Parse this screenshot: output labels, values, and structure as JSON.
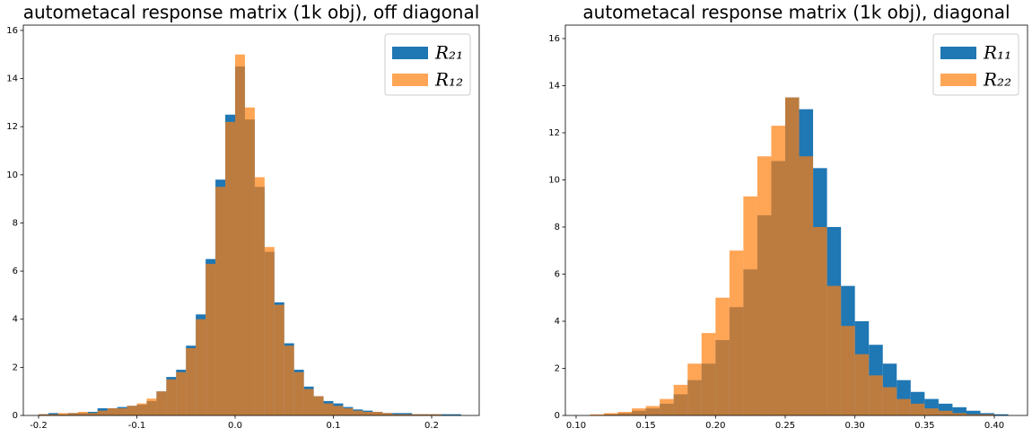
{
  "chart_data": [
    {
      "type": "histogram",
      "title": "autometacal response matrix (1k obj), off diagonal",
      "bins": [
        -0.2,
        -0.19,
        -0.18,
        -0.17,
        -0.16,
        -0.15,
        -0.14,
        -0.13,
        -0.12,
        -0.11,
        -0.1,
        -0.09,
        -0.08,
        -0.07,
        -0.06,
        -0.05,
        -0.04,
        -0.03,
        -0.02,
        -0.01,
        0,
        0.01,
        0.02,
        0.03,
        0.04,
        0.05,
        0.06,
        0.07,
        0.08,
        0.09,
        0.1,
        0.11,
        0.12,
        0.13,
        0.14,
        0.15,
        0.16,
        0.17,
        0.18,
        0.19,
        0.2,
        0.21,
        0.22,
        0.23
      ],
      "series": [
        {
          "name": "R₂₁",
          "color": "#1f77b4",
          "opacity": 1,
          "values": [
            0.05,
            0.1,
            0.05,
            0.1,
            0.1,
            0.15,
            0.3,
            0.3,
            0.35,
            0.4,
            0.45,
            0.6,
            1.0,
            1.6,
            1.9,
            2.9,
            4.2,
            6.5,
            9.8,
            12.5,
            14.5,
            12.3,
            9.5,
            6.8,
            4.7,
            3.0,
            1.9,
            1.2,
            0.8,
            0.6,
            0.5,
            0.35,
            0.25,
            0.2,
            0.15,
            0.1,
            0.1,
            0.1,
            0.05,
            0.05,
            0.05,
            0.05,
            0.05
          ]
        },
        {
          "name": "R₁₂",
          "color": "#ff7f0e",
          "opacity": 0.7,
          "values": [
            0.05,
            0.05,
            0.1,
            0.1,
            0.15,
            0.1,
            0.2,
            0.3,
            0.3,
            0.4,
            0.5,
            0.7,
            1.0,
            1.5,
            1.8,
            2.8,
            4.0,
            6.3,
            9.5,
            12.2,
            15.0,
            12.8,
            9.9,
            7.0,
            4.6,
            2.9,
            1.8,
            1.1,
            0.8,
            0.5,
            0.4,
            0.3,
            0.2,
            0.15,
            0.15,
            0.1,
            0.05,
            0.05,
            0.05,
            0.05,
            0.05,
            0,
            0
          ]
        }
      ],
      "xlim": [
        -0.2155,
        0.2484
      ],
      "ylim": [
        0,
        16.22
      ],
      "xticks": [
        -0.2,
        -0.1,
        {
          "value": 0,
          "label": "0.0"
        },
        0.1,
        0.2
      ],
      "yticks": [
        0,
        2,
        4,
        6,
        8,
        10,
        12,
        14,
        16
      ],
      "legend": "upper right"
    },
    {
      "type": "histogram",
      "title": "autometacal response matrix (1k obj),  diagonal",
      "bins": [
        0.1,
        0.11,
        0.12,
        0.13,
        0.14,
        0.15,
        0.16,
        0.17,
        0.18,
        0.19,
        0.2,
        0.21,
        0.22,
        0.23,
        0.24,
        0.25,
        0.26,
        0.27,
        0.28,
        0.29,
        0.3,
        0.31,
        0.32,
        0.33,
        0.34,
        0.35,
        0.36,
        0.37,
        0.38,
        0.39,
        0.4,
        0.41
      ],
      "series": [
        {
          "name": "R₁₁",
          "color": "#1f77b4",
          "opacity": 1,
          "values": [
            0,
            0,
            0.05,
            0.1,
            0.2,
            0.3,
            0.5,
            0.9,
            1.5,
            2.2,
            3.2,
            4.6,
            6.2,
            8.5,
            10.8,
            13.5,
            13.0,
            10.5,
            8.0,
            5.5,
            4.0,
            3.0,
            2.2,
            1.5,
            1.0,
            0.7,
            0.5,
            0.35,
            0.2,
            0.1,
            0.05
          ]
        },
        {
          "name": "R₂₂",
          "color": "#ff7f0e",
          "opacity": 0.7,
          "values": [
            0,
            0.05,
            0.1,
            0.15,
            0.3,
            0.4,
            0.7,
            1.3,
            2.2,
            3.5,
            5.0,
            7.0,
            9.3,
            11.0,
            12.3,
            13.5,
            11.0,
            8.0,
            5.5,
            3.8,
            2.6,
            1.7,
            1.2,
            0.7,
            0.5,
            0.3,
            0.2,
            0.1,
            0.05,
            0.05,
            0
          ]
        }
      ],
      "xlim": [
        0.0923,
        0.4238
      ],
      "ylim": [
        0,
        16.57
      ],
      "xticks": [
        {
          "value": 0.1,
          "label": "0.10"
        },
        0.15,
        {
          "value": 0.2,
          "label": "0.20"
        },
        0.25,
        {
          "value": 0.3,
          "label": "0.30"
        },
        0.35,
        {
          "value": 0.4,
          "label": "0.40"
        }
      ],
      "yticks": [
        0,
        2,
        4,
        6,
        8,
        10,
        12,
        14,
        16
      ],
      "legend": "upper right"
    }
  ]
}
